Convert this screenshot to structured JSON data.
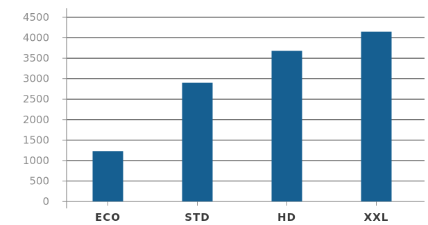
{
  "chart_data": {
    "type": "bar",
    "title": "",
    "xlabel": "",
    "ylabel": "",
    "categories": [
      "ECO",
      "STD",
      "HD",
      "XXL"
    ],
    "values": [
      1230,
      2900,
      3680,
      4150
    ],
    "ylim": [
      0,
      4500
    ],
    "yticks": [
      0,
      500,
      1000,
      1500,
      2000,
      2500,
      3000,
      3500,
      4000,
      4500
    ],
    "ytick_labels": [
      "0",
      "500",
      "1000",
      "1500",
      "2000",
      "2500",
      "3000",
      "3500",
      "4000",
      "4500"
    ],
    "grid": true,
    "legend": "none",
    "colors": {
      "bar": "#165f91",
      "grid": "#5a5a5a",
      "axis": "#8c8c8c"
    }
  }
}
